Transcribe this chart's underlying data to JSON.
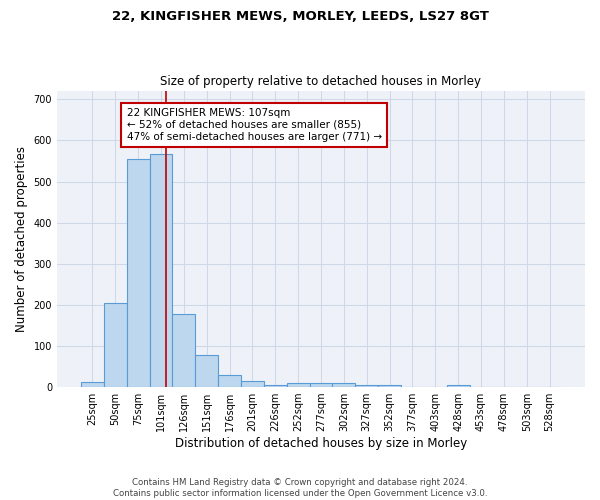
{
  "title1": "22, KINGFISHER MEWS, MORLEY, LEEDS, LS27 8GT",
  "title2": "Size of property relative to detached houses in Morley",
  "xlabel": "Distribution of detached houses by size in Morley",
  "ylabel": "Number of detached properties",
  "bar_labels": [
    "25sqm",
    "50sqm",
    "75sqm",
    "101sqm",
    "126sqm",
    "151sqm",
    "176sqm",
    "201sqm",
    "226sqm",
    "252sqm",
    "277sqm",
    "302sqm",
    "327sqm",
    "352sqm",
    "377sqm",
    "403sqm",
    "428sqm",
    "453sqm",
    "478sqm",
    "503sqm",
    "528sqm"
  ],
  "bar_heights": [
    12,
    204,
    555,
    566,
    178,
    78,
    30,
    14,
    5,
    10,
    10,
    10,
    5,
    5,
    0,
    0,
    5,
    0,
    0,
    0,
    0
  ],
  "bar_color": "#bdd7ee",
  "bar_edge_color": "#5b9bd5",
  "grid_color": "#d0d8e8",
  "bg_color": "#eef2f8",
  "vline_x": 3.24,
  "vline_color": "#c00000",
  "annotation_text": "22 KINGFISHER MEWS: 107sqm\n← 52% of detached houses are smaller (855)\n47% of semi-detached houses are larger (771) →",
  "annotation_box_color": "white",
  "annotation_box_edge_color": "#c00000",
  "footnote": "Contains HM Land Registry data © Crown copyright and database right 2024.\nContains public sector information licensed under the Open Government Licence v3.0.",
  "ylim": [
    0,
    720
  ],
  "yticks": [
    0,
    100,
    200,
    300,
    400,
    500,
    600,
    700
  ],
  "title1_fontsize": 9.5,
  "title2_fontsize": 8.5
}
